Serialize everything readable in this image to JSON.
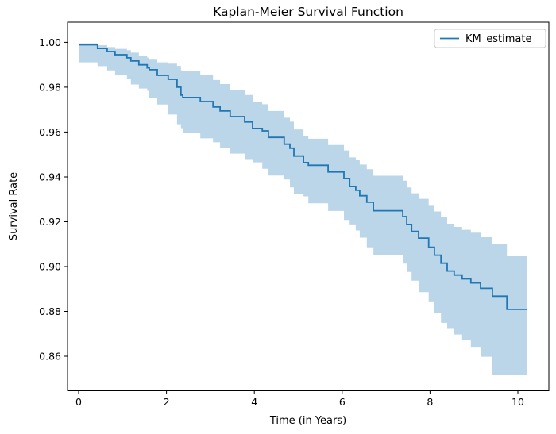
{
  "figure": {
    "title": "Kaplan-Meier Survival Function",
    "xlabel": "Time (in Years)",
    "ylabel": "Survival Rate",
    "legend": {
      "label": "KM_estimate",
      "position": "upper right"
    },
    "colors": {
      "line": "#1f77b4",
      "band_fill": "#1f77b4",
      "band_opacity": 0.3,
      "spine": "#000000",
      "text": "#000000",
      "legend_border": "#cccccc",
      "background": "#ffffff"
    }
  },
  "chart_data": {
    "type": "line",
    "subtype": "kaplan-meier-step-with-confidence-band",
    "title": "Kaplan-Meier Survival Function",
    "xlabel": "Time (in Years)",
    "ylabel": "Survival Rate",
    "legend": [
      "KM_estimate"
    ],
    "legend_position": "upper right",
    "grid": false,
    "xlim": [
      -0.253,
      10.705
    ],
    "ylim": [
      0.8446,
      1.009
    ],
    "x_ticks": [
      0,
      2,
      4,
      6,
      8,
      10
    ],
    "y_ticks": [
      {
        "v": 1.0,
        "label": "1.00"
      },
      {
        "v": 0.98,
        "label": "0.98"
      },
      {
        "v": 0.96,
        "label": "0.96"
      },
      {
        "v": 0.94,
        "label": "0.94"
      },
      {
        "v": 0.92,
        "label": "0.92"
      },
      {
        "v": 0.9,
        "label": "0.90"
      },
      {
        "v": 0.88,
        "label": "0.88"
      },
      {
        "v": 0.86,
        "label": "0.86"
      }
    ],
    "series": [
      {
        "name": "KM_estimate",
        "step": "post",
        "points": [
          {
            "t": 0.0,
            "s": 0.9989,
            "lo": 0.9929,
            "hi": 0.9996
          },
          {
            "t": 0.43,
            "s": 0.9973,
            "lo": 0.9911,
            "hi": 0.9987
          },
          {
            "t": 0.65,
            "s": 0.9959,
            "lo": 0.9894,
            "hi": 0.9979
          },
          {
            "t": 0.83,
            "s": 0.9945,
            "lo": 0.9875,
            "hi": 0.9971
          },
          {
            "t": 1.1,
            "s": 0.9931,
            "lo": 0.9853,
            "hi": 0.9965
          },
          {
            "t": 1.19,
            "s": 0.9917,
            "lo": 0.9835,
            "hi": 0.9954
          },
          {
            "t": 1.37,
            "s": 0.99,
            "lo": 0.9812,
            "hi": 0.9941
          },
          {
            "t": 1.56,
            "s": 0.9886,
            "lo": 0.9794,
            "hi": 0.9932
          },
          {
            "t": 1.61,
            "s": 0.9878,
            "lo": 0.9784,
            "hi": 0.9926
          },
          {
            "t": 1.79,
            "s": 0.9853,
            "lo": 0.9751,
            "hi": 0.9911
          },
          {
            "t": 2.04,
            "s": 0.9835,
            "lo": 0.9723,
            "hi": 0.9905
          },
          {
            "t": 2.24,
            "s": 0.98,
            "lo": 0.9678,
            "hi": 0.9895
          },
          {
            "t": 2.33,
            "s": 0.9765,
            "lo": 0.9635,
            "hi": 0.9875
          },
          {
            "t": 2.37,
            "s": 0.9754,
            "lo": 0.9617,
            "hi": 0.9871
          },
          {
            "t": 2.77,
            "s": 0.9736,
            "lo": 0.9597,
            "hi": 0.9855
          },
          {
            "t": 3.06,
            "s": 0.9712,
            "lo": 0.9572,
            "hi": 0.9832
          },
          {
            "t": 3.22,
            "s": 0.9694,
            "lo": 0.9554,
            "hi": 0.9814
          },
          {
            "t": 3.45,
            "s": 0.9669,
            "lo": 0.9528,
            "hi": 0.9789
          },
          {
            "t": 3.78,
            "s": 0.9645,
            "lo": 0.9504,
            "hi": 0.9765
          },
          {
            "t": 3.96,
            "s": 0.9616,
            "lo": 0.9476,
            "hi": 0.9735
          },
          {
            "t": 4.18,
            "s": 0.9605,
            "lo": 0.9465,
            "hi": 0.9724
          },
          {
            "t": 4.32,
            "s": 0.9576,
            "lo": 0.9436,
            "hi": 0.9694
          },
          {
            "t": 4.68,
            "s": 0.9546,
            "lo": 0.9406,
            "hi": 0.9664
          },
          {
            "t": 4.81,
            "s": 0.9528,
            "lo": 0.9388,
            "hi": 0.9646
          },
          {
            "t": 4.9,
            "s": 0.9493,
            "lo": 0.9353,
            "hi": 0.9612
          },
          {
            "t": 5.12,
            "s": 0.9464,
            "lo": 0.9324,
            "hi": 0.9583
          },
          {
            "t": 5.23,
            "s": 0.9452,
            "lo": 0.9313,
            "hi": 0.957
          },
          {
            "t": 5.68,
            "s": 0.9422,
            "lo": 0.9282,
            "hi": 0.9542
          },
          {
            "t": 6.04,
            "s": 0.9393,
            "lo": 0.9248,
            "hi": 0.9518
          },
          {
            "t": 6.17,
            "s": 0.9357,
            "lo": 0.9208,
            "hi": 0.9487
          },
          {
            "t": 6.31,
            "s": 0.934,
            "lo": 0.9188,
            "hi": 0.9474
          },
          {
            "t": 6.4,
            "s": 0.9316,
            "lo": 0.9161,
            "hi": 0.9455
          },
          {
            "t": 6.56,
            "s": 0.9287,
            "lo": 0.9129,
            "hi": 0.9434
          },
          {
            "t": 6.71,
            "s": 0.9249,
            "lo": 0.9086,
            "hi": 0.9405
          },
          {
            "t": 7.38,
            "s": 0.9223,
            "lo": 0.9053,
            "hi": 0.9383
          },
          {
            "t": 7.47,
            "s": 0.9188,
            "lo": 0.9013,
            "hi": 0.9353
          },
          {
            "t": 7.58,
            "s": 0.9157,
            "lo": 0.8976,
            "hi": 0.9327
          },
          {
            "t": 7.74,
            "s": 0.9127,
            "lo": 0.8937,
            "hi": 0.9302
          },
          {
            "t": 7.97,
            "s": 0.9086,
            "lo": 0.8886,
            "hi": 0.9271
          },
          {
            "t": 8.1,
            "s": 0.9051,
            "lo": 0.8841,
            "hi": 0.9246
          },
          {
            "t": 8.25,
            "s": 0.9015,
            "lo": 0.8794,
            "hi": 0.922
          },
          {
            "t": 8.39,
            "s": 0.898,
            "lo": 0.8749,
            "hi": 0.9191
          },
          {
            "t": 8.55,
            "s": 0.8962,
            "lo": 0.8722,
            "hi": 0.9177
          },
          {
            "t": 8.73,
            "s": 0.8945,
            "lo": 0.8697,
            "hi": 0.9164
          },
          {
            "t": 8.93,
            "s": 0.8927,
            "lo": 0.8673,
            "hi": 0.9151
          },
          {
            "t": 9.15,
            "s": 0.8903,
            "lo": 0.8642,
            "hi": 0.9131
          },
          {
            "t": 9.42,
            "s": 0.8868,
            "lo": 0.8598,
            "hi": 0.91
          },
          {
            "t": 9.75,
            "s": 0.8809,
            "lo": 0.8515,
            "hi": 0.9046
          },
          {
            "t": 10.2,
            "s": 0.8809,
            "lo": 0.8515,
            "hi": 0.9046
          }
        ]
      }
    ]
  }
}
